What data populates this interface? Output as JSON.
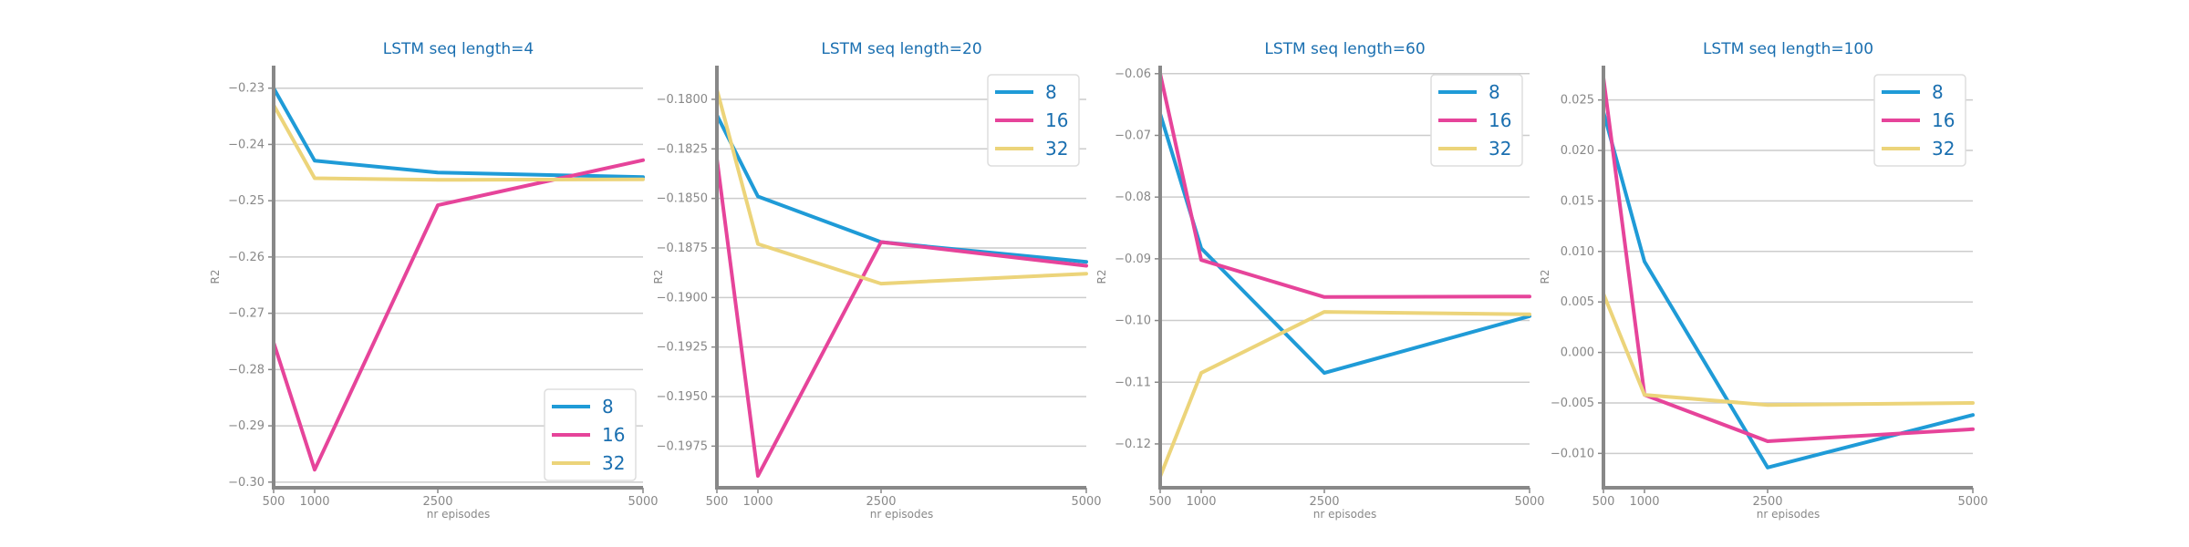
{
  "chart_data": [
    {
      "type": "line",
      "title": "LSTM seq length=4",
      "xlabel": "nr episodes",
      "ylabel": "R2",
      "x": [
        500,
        1000,
        2500,
        5000
      ],
      "xticks": [
        "500",
        "1000",
        "2500",
        "5000"
      ],
      "xlim": [
        500,
        5000
      ],
      "ylim": [
        -0.301,
        -0.226
      ],
      "yticks": [
        -0.23,
        -0.24,
        -0.25,
        -0.26,
        -0.27,
        -0.28,
        -0.29,
        -0.3
      ],
      "ytick_labels": [
        "−0.23",
        "−0.24",
        "−0.25",
        "−0.26",
        "−0.27",
        "−0.28",
        "−0.29",
        "−0.30"
      ],
      "legend_position": "lower-right",
      "series": [
        {
          "name": "8",
          "color": "#1f9bd7",
          "values": [
            -0.23,
            -0.2429,
            -0.245,
            -0.2458
          ]
        },
        {
          "name": "16",
          "color": "#e6449a",
          "values": [
            -0.2752,
            -0.2978,
            -0.2508,
            -0.2428
          ]
        },
        {
          "name": "32",
          "color": "#ecd47a",
          "values": [
            -0.233,
            -0.246,
            -0.2463,
            -0.2462
          ]
        }
      ]
    },
    {
      "type": "line",
      "title": "LSTM seq length=20",
      "xlabel": "nr episodes",
      "ylabel": "R2",
      "x": [
        500,
        1000,
        2500,
        5000
      ],
      "xticks": [
        "500",
        "1000",
        "2500",
        "5000"
      ],
      "xlim": [
        500,
        5000
      ],
      "ylim": [
        -0.1996,
        -0.1783
      ],
      "yticks": [
        -0.18,
        -0.1825,
        -0.185,
        -0.1875,
        -0.19,
        -0.1925,
        -0.195,
        -0.1975
      ],
      "ytick_labels": [
        "−0.1800",
        "−0.1825",
        "−0.1850",
        "−0.1875",
        "−0.1900",
        "−0.1925",
        "−0.1950",
        "−0.1975"
      ],
      "legend_position": "upper-right",
      "series": [
        {
          "name": "8",
          "color": "#1f9bd7",
          "values": [
            -0.1808,
            -0.1849,
            -0.1872,
            -0.1882
          ]
        },
        {
          "name": "16",
          "color": "#e6449a",
          "values": [
            -0.183,
            -0.199,
            -0.1872,
            -0.1884
          ]
        },
        {
          "name": "32",
          "color": "#ecd47a",
          "values": [
            -0.1795,
            -0.1873,
            -0.1893,
            -0.1888
          ]
        }
      ]
    },
    {
      "type": "line",
      "title": "LSTM seq length=60",
      "xlabel": "nr episodes",
      "ylabel": "R2",
      "x": [
        500,
        1000,
        2500,
        5000
      ],
      "xticks": [
        "500",
        "1000",
        "2500",
        "5000"
      ],
      "xlim": [
        500,
        5000
      ],
      "ylim": [
        -0.1271,
        -0.0587
      ],
      "yticks": [
        -0.06,
        -0.07,
        -0.08,
        -0.09,
        -0.1,
        -0.11,
        -0.12
      ],
      "ytick_labels": [
        "−0.06",
        "−0.07",
        "−0.08",
        "−0.09",
        "−0.10",
        "−0.11",
        "−0.12"
      ],
      "legend_position": "upper-right",
      "series": [
        {
          "name": "8",
          "color": "#1f9bd7",
          "values": [
            -0.0665,
            -0.0883,
            -0.1085,
            -0.0993
          ]
        },
        {
          "name": "16",
          "color": "#e6449a",
          "values": [
            -0.06,
            -0.0902,
            -0.0962,
            -0.0961
          ]
        },
        {
          "name": "32",
          "color": "#ecd47a",
          "values": [
            -0.1253,
            -0.1085,
            -0.0986,
            -0.099
          ]
        }
      ]
    },
    {
      "type": "line",
      "title": "LSTM seq length=100",
      "xlabel": "nr episodes",
      "ylabel": "R2",
      "x": [
        500,
        1000,
        2500,
        5000
      ],
      "xticks": [
        "500",
        "1000",
        "2500",
        "5000"
      ],
      "xlim": [
        500,
        5000
      ],
      "ylim": [
        -0.0134,
        0.0284
      ],
      "yticks": [
        0.025,
        0.02,
        0.015,
        0.01,
        0.005,
        0.0,
        -0.005,
        -0.01
      ],
      "ytick_labels": [
        "0.025",
        "0.020",
        "0.015",
        "0.010",
        "0.005",
        "0.000",
        "−0.005",
        "−0.010"
      ],
      "legend_position": "upper-right",
      "series": [
        {
          "name": "8",
          "color": "#1f9bd7",
          "values": [
            0.0238,
            0.009,
            -0.0114,
            -0.0062
          ]
        },
        {
          "name": "16",
          "color": "#e6449a",
          "values": [
            0.0272,
            -0.0042,
            -0.0088,
            -0.0076
          ]
        },
        {
          "name": "32",
          "color": "#ecd47a",
          "values": [
            0.0058,
            -0.0042,
            -0.0052,
            -0.005
          ]
        }
      ]
    }
  ]
}
